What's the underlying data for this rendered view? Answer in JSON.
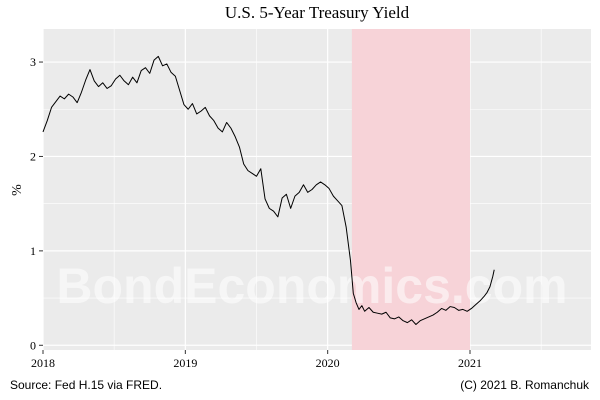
{
  "chart_data": {
    "type": "line",
    "title": "U.S. 5-Year Treasury Yield",
    "ylabel": "%",
    "xlabel": "",
    "ylim": [
      -0.05,
      3.35
    ],
    "xlim": [
      2018.0,
      2021.85
    ],
    "y_ticks": [
      0,
      1,
      2,
      3
    ],
    "x_ticks": [
      2018,
      2019,
      2020,
      2021
    ],
    "grid": true,
    "legend": "none",
    "recession_band": {
      "start": 2020.17,
      "end": 2021.0,
      "color": "#f7d3d8"
    },
    "series": [
      {
        "color": "#000000",
        "x": [
          2018.0,
          2018.03,
          2018.06,
          2018.09,
          2018.12,
          2018.15,
          2018.18,
          2018.21,
          2018.24,
          2018.27,
          2018.3,
          2018.33,
          2018.36,
          2018.39,
          2018.42,
          2018.45,
          2018.48,
          2018.51,
          2018.54,
          2018.57,
          2018.6,
          2018.63,
          2018.66,
          2018.69,
          2018.72,
          2018.75,
          2018.78,
          2018.81,
          2018.84,
          2018.87,
          2018.9,
          2018.93,
          2018.96,
          2018.99,
          2019.02,
          2019.05,
          2019.08,
          2019.11,
          2019.14,
          2019.17,
          2019.2,
          2019.23,
          2019.26,
          2019.29,
          2019.32,
          2019.35,
          2019.38,
          2019.41,
          2019.44,
          2019.47,
          2019.5,
          2019.53,
          2019.56,
          2019.59,
          2019.62,
          2019.65,
          2019.68,
          2019.71,
          2019.74,
          2019.77,
          2019.8,
          2019.83,
          2019.86,
          2019.89,
          2019.92,
          2019.95,
          2019.98,
          2020.01,
          2020.04,
          2020.07,
          2020.1,
          2020.13,
          2020.16,
          2020.18,
          2020.2,
          2020.22,
          2020.24,
          2020.26,
          2020.29,
          2020.32,
          2020.35,
          2020.38,
          2020.41,
          2020.44,
          2020.47,
          2020.5,
          2020.53,
          2020.56,
          2020.59,
          2020.62,
          2020.65,
          2020.68,
          2020.71,
          2020.74,
          2020.77,
          2020.8,
          2020.83,
          2020.86,
          2020.89,
          2020.92,
          2020.95,
          2020.98,
          2021.01,
          2021.04,
          2021.07,
          2021.1,
          2021.12,
          2021.14,
          2021.16,
          2021.17
        ],
        "y": [
          2.26,
          2.38,
          2.52,
          2.58,
          2.64,
          2.61,
          2.66,
          2.63,
          2.57,
          2.68,
          2.81,
          2.92,
          2.8,
          2.74,
          2.78,
          2.72,
          2.75,
          2.82,
          2.86,
          2.8,
          2.76,
          2.84,
          2.78,
          2.91,
          2.94,
          2.88,
          3.02,
          3.06,
          2.96,
          2.98,
          2.89,
          2.85,
          2.7,
          2.55,
          2.5,
          2.56,
          2.45,
          2.48,
          2.52,
          2.43,
          2.38,
          2.3,
          2.26,
          2.36,
          2.3,
          2.21,
          2.1,
          1.92,
          1.85,
          1.82,
          1.79,
          1.87,
          1.55,
          1.45,
          1.42,
          1.36,
          1.56,
          1.6,
          1.45,
          1.58,
          1.62,
          1.7,
          1.62,
          1.65,
          1.7,
          1.73,
          1.7,
          1.66,
          1.58,
          1.53,
          1.48,
          1.25,
          0.9,
          0.55,
          0.45,
          0.38,
          0.42,
          0.36,
          0.4,
          0.35,
          0.34,
          0.33,
          0.35,
          0.29,
          0.28,
          0.3,
          0.26,
          0.24,
          0.27,
          0.22,
          0.26,
          0.28,
          0.3,
          0.32,
          0.35,
          0.39,
          0.37,
          0.41,
          0.4,
          0.37,
          0.38,
          0.36,
          0.39,
          0.43,
          0.47,
          0.52,
          0.56,
          0.62,
          0.73,
          0.8
        ]
      }
    ]
  },
  "watermark": "BondEconomics.com",
  "caption_left": "Source: Fed H.15 via FRED.",
  "caption_right": "(C) 2021 B. Romanchuk",
  "colors": {
    "panel": "#ebebeb",
    "grid": "#ffffff",
    "line": "#000000",
    "band": "#f7d3d8"
  }
}
